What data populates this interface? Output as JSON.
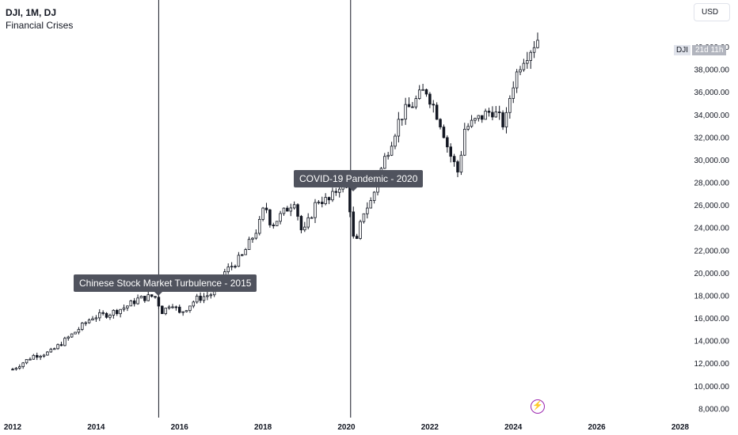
{
  "header": {
    "symbol_line": "DJI, 1M, DJ",
    "indicator_line": "Financial Crises"
  },
  "currency_button": {
    "label": "USD"
  },
  "price_tag": {
    "symbol": "DJI",
    "countdown": "21d 11h"
  },
  "annotations": [
    {
      "label": "Chinese Stock Market Turbulence - 2015",
      "date": 2015.5
    },
    {
      "label": "COVID-19 Pandemic - 2020",
      "date": 2020.1
    }
  ],
  "chart_data": {
    "type": "candlestick",
    "interval": "1M",
    "x_ticks": [
      "2012",
      "2014",
      "2016",
      "2018",
      "2020",
      "2022",
      "2024",
      "2026",
      "2028"
    ],
    "y_ticks": [
      "8,000.00",
      "10,000.00",
      "12,000.00",
      "14,000.00",
      "16,000.00",
      "18,000.00",
      "20,000.00",
      "22,000.00",
      "24,000.00",
      "26,000.00",
      "28,000.00",
      "30,000.00",
      "32,000.00",
      "34,000.00",
      "36,000.00",
      "38,000.00",
      "40,000.00"
    ],
    "xlim": [
      2012,
      2028
    ],
    "ylim": [
      7500,
      42000
    ],
    "vertical_markers": [
      2015.5,
      2020.1
    ],
    "anchors": [
      [
        2012.0,
        11500
      ],
      [
        2012.5,
        12700
      ],
      [
        2012.9,
        13000
      ],
      [
        2013.5,
        14800
      ],
      [
        2013.9,
        16100
      ],
      [
        2014.3,
        16400
      ],
      [
        2014.7,
        17000
      ],
      [
        2015.0,
        17700
      ],
      [
        2015.4,
        18000
      ],
      [
        2015.6,
        16500
      ],
      [
        2015.8,
        17500
      ],
      [
        2016.0,
        16400
      ],
      [
        2016.4,
        17700
      ],
      [
        2016.8,
        18200
      ],
      [
        2017.0,
        19800
      ],
      [
        2017.5,
        21500
      ],
      [
        2017.9,
        24200
      ],
      [
        2018.05,
        26100
      ],
      [
        2018.2,
        24200
      ],
      [
        2018.6,
        25800
      ],
      [
        2018.75,
        26500
      ],
      [
        2018.95,
        23300
      ],
      [
        2019.3,
        26500
      ],
      [
        2019.6,
        26400
      ],
      [
        2019.95,
        28500
      ],
      [
        2020.1,
        25400
      ],
      [
        2020.2,
        21900
      ],
      [
        2020.4,
        25400
      ],
      [
        2020.6,
        26400
      ],
      [
        2020.9,
        30000
      ],
      [
        2021.3,
        33900
      ],
      [
        2021.6,
        35000
      ],
      [
        2021.9,
        36300
      ],
      [
        2022.1,
        34700
      ],
      [
        2022.3,
        32900
      ],
      [
        2022.45,
        30800
      ],
      [
        2022.7,
        28700
      ],
      [
        2022.8,
        32700
      ],
      [
        2023.0,
        33200
      ],
      [
        2023.3,
        34000
      ],
      [
        2023.5,
        34400
      ],
      [
        2023.7,
        33500
      ],
      [
        2023.8,
        33000
      ],
      [
        2023.95,
        36300
      ],
      [
        2024.2,
        38900
      ],
      [
        2024.4,
        39800
      ],
      [
        2024.6,
        40842
      ]
    ],
    "series": [
      {
        "name": "DJI",
        "colors": {
          "up": "#ffffff",
          "down": "#131722",
          "wick": "#131722"
        }
      }
    ]
  }
}
